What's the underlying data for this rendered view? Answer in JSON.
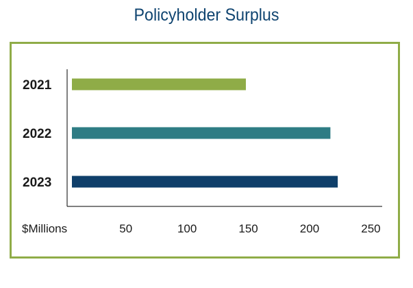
{
  "chart_data": {
    "type": "bar",
    "orientation": "horizontal",
    "title": "Policyholder Surplus",
    "categories": [
      "2021",
      "2022",
      "2023"
    ],
    "values": [
      148,
      217,
      223
    ],
    "colors": [
      "#8fac47",
      "#2e7c84",
      "#0f3f6a"
    ],
    "xlabel": "$Millions",
    "ylabel": "",
    "xticks": [
      50,
      100,
      150,
      200,
      250
    ],
    "xlim": [
      6,
      252
    ],
    "grid": false,
    "frame_color": "#8fac47",
    "title_color": "#0f4470"
  }
}
